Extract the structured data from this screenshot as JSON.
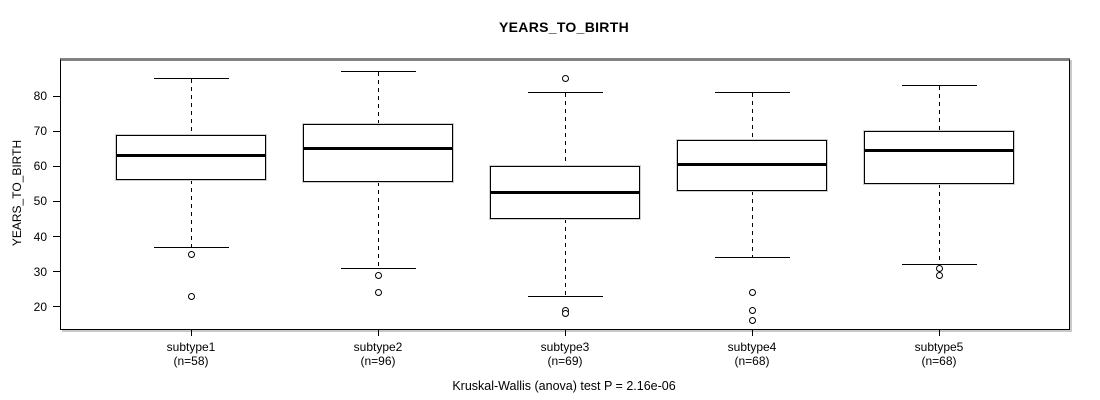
{
  "chart_data": {
    "type": "boxplot",
    "title": "YEARS_TO_BIRTH",
    "ylabel": "YEARS_TO_BIRTH",
    "xlabel": "",
    "ylim": [
      13.6,
      90.1
    ],
    "yticks": [
      20,
      30,
      40,
      50,
      60,
      70,
      80
    ],
    "grid": false,
    "caption": "Kruskal-Wallis (anova) test P = 2.16e-06",
    "groups": [
      {
        "label": "subtype1",
        "sublabel": "(n=58)",
        "n": 58,
        "whisker_low": 37,
        "q1": 56,
        "median": 63,
        "q3": 69,
        "whisker_high": 85,
        "outliers_low": [
          35,
          23
        ],
        "outliers_high": []
      },
      {
        "label": "subtype2",
        "sublabel": "(n=96)",
        "n": 96,
        "whisker_low": 31,
        "q1": 55.5,
        "median": 65,
        "q3": 72,
        "whisker_high": 87,
        "outliers_low": [
          29,
          24
        ],
        "outliers_high": []
      },
      {
        "label": "subtype3",
        "sublabel": "(n=69)",
        "n": 69,
        "whisker_low": 23,
        "q1": 45,
        "median": 52.5,
        "q3": 60,
        "whisker_high": 81,
        "outliers_low": [
          19,
          18
        ],
        "outliers_high": [
          85
        ]
      },
      {
        "label": "subtype4",
        "sublabel": "(n=68)",
        "n": 68,
        "whisker_low": 34,
        "q1": 53,
        "median": 60.5,
        "q3": 67.5,
        "whisker_high": 81,
        "outliers_low": [
          24,
          19,
          16
        ],
        "outliers_high": []
      },
      {
        "label": "subtype5",
        "sublabel": "(n=68)",
        "n": 68,
        "whisker_low": 32,
        "q1": 55,
        "median": 64.5,
        "q3": 70,
        "whisker_high": 83,
        "outliers_low": [
          31,
          29
        ],
        "outliers_high": []
      }
    ],
    "style": {
      "box_fill": "#ffffff",
      "line_color": "#000000",
      "panel_top_border": "#828282",
      "shadow_color": "#c9c9c9"
    }
  }
}
